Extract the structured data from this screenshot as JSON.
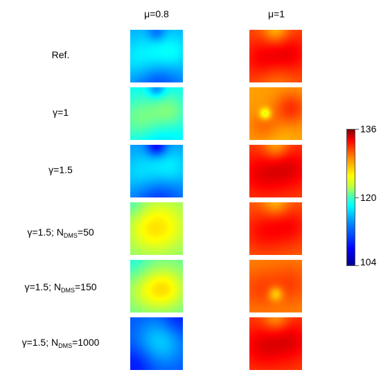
{
  "columns": [
    "μ=0.8",
    "μ=1"
  ],
  "rows": [
    {
      "label": "Ref.",
      "label_sub": "",
      "label_post": "",
      "maps": [
        "low_ref",
        "high_ref"
      ]
    },
    {
      "label": "γ=1",
      "label_sub": "",
      "label_post": "",
      "maps": [
        "low_g1",
        "high_g1"
      ]
    },
    {
      "label": "γ=1.5",
      "label_sub": "",
      "label_post": "",
      "maps": [
        "low_g15",
        "high_g15"
      ]
    },
    {
      "label": "γ=1.5; N",
      "label_sub": "DMS",
      "label_post": "=50",
      "maps": [
        "low_n50",
        "high_n50"
      ]
    },
    {
      "label": "γ=1.5; N",
      "label_sub": "DMS",
      "label_post": "=150",
      "maps": [
        "low_n150",
        "high_n150"
      ]
    },
    {
      "label": "γ=1.5; N",
      "label_sub": "DMS",
      "label_post": "=1000",
      "maps": [
        "low_n1000",
        "high_n1000"
      ]
    }
  ],
  "colorbar": {
    "min": "104",
    "mid": "120",
    "max": "136",
    "colormap": "jet"
  },
  "maps": {
    "low_ref": {
      "base": 113.2,
      "blobs": [
        [
          0.22,
          0.58,
          0.32,
          3.0
        ],
        [
          0.78,
          0.45,
          0.28,
          3.0
        ],
        [
          0.5,
          0.05,
          0.12,
          -2.5
        ],
        [
          0.5,
          1.0,
          0.35,
          -3.5
        ]
      ]
    },
    "low_g1": {
      "base": 116.0,
      "blobs": [
        [
          0.2,
          0.6,
          0.3,
          3.8
        ],
        [
          0.76,
          0.45,
          0.25,
          3.5
        ],
        [
          0.5,
          0.02,
          0.12,
          -4.0
        ],
        [
          0.5,
          1.0,
          0.3,
          -1.5
        ]
      ]
    },
    "low_g15": {
      "base": 112.5,
      "blobs": [
        [
          0.22,
          0.58,
          0.32,
          3.0
        ],
        [
          0.78,
          0.45,
          0.28,
          3.0
        ],
        [
          0.5,
          0.02,
          0.14,
          -5.0
        ],
        [
          0.5,
          1.0,
          0.35,
          -3.5
        ]
      ]
    },
    "low_n50": {
      "base": 120.0,
      "blobs": [
        [
          0.6,
          0.45,
          0.38,
          4.0
        ],
        [
          0.25,
          0.55,
          0.3,
          1.5
        ],
        [
          0.0,
          0.0,
          0.2,
          -2.0
        ]
      ]
    },
    "low_n150": {
      "base": 119.0,
      "blobs": [
        [
          0.68,
          0.55,
          0.3,
          5.0
        ],
        [
          0.25,
          0.6,
          0.3,
          2.5
        ],
        [
          0.0,
          0.0,
          0.25,
          -2.0
        ]
      ]
    },
    "low_n1000": {
      "base": 110.5,
      "blobs": [
        [
          0.58,
          0.45,
          0.32,
          4.0
        ],
        [
          0.1,
          0.9,
          0.25,
          -2.0
        ],
        [
          0.9,
          0.05,
          0.25,
          -2.0
        ]
      ]
    },
    "high_ref": {
      "base": 129.5,
      "blobs": [
        [
          0.25,
          0.55,
          0.3,
          2.5
        ],
        [
          0.8,
          0.45,
          0.28,
          2.5
        ],
        [
          0.5,
          0.0,
          0.18,
          -3.5
        ],
        [
          0.5,
          1.0,
          0.25,
          -1.5
        ]
      ]
    },
    "high_g1": {
      "base": 127.0,
      "blobs": [
        [
          0.3,
          0.5,
          0.08,
          -5.0
        ],
        [
          0.8,
          0.4,
          0.22,
          3.5
        ],
        [
          0.3,
          0.75,
          0.22,
          2.0
        ],
        [
          0.5,
          1.0,
          0.25,
          -1.0
        ]
      ]
    },
    "high_g15": {
      "base": 130.0,
      "blobs": [
        [
          0.25,
          0.55,
          0.3,
          2.5
        ],
        [
          0.8,
          0.45,
          0.28,
          2.5
        ],
        [
          0.5,
          0.0,
          0.18,
          -3.5
        ]
      ]
    },
    "high_n50": {
      "base": 129.0,
      "blobs": [
        [
          0.25,
          0.55,
          0.3,
          2.5
        ],
        [
          0.8,
          0.45,
          0.28,
          2.5
        ],
        [
          0.5,
          0.0,
          0.18,
          -3.0
        ]
      ]
    },
    "high_n150": {
      "base": 127.8,
      "blobs": [
        [
          0.5,
          0.65,
          0.1,
          -4.0
        ],
        [
          0.2,
          0.55,
          0.28,
          2.0
        ],
        [
          0.8,
          0.45,
          0.28,
          2.0
        ]
      ]
    },
    "high_n1000": {
      "base": 130.0,
      "blobs": [
        [
          0.25,
          0.55,
          0.3,
          2.5
        ],
        [
          0.8,
          0.45,
          0.28,
          2.5
        ],
        [
          0.5,
          0.0,
          0.18,
          -3.0
        ]
      ]
    }
  }
}
